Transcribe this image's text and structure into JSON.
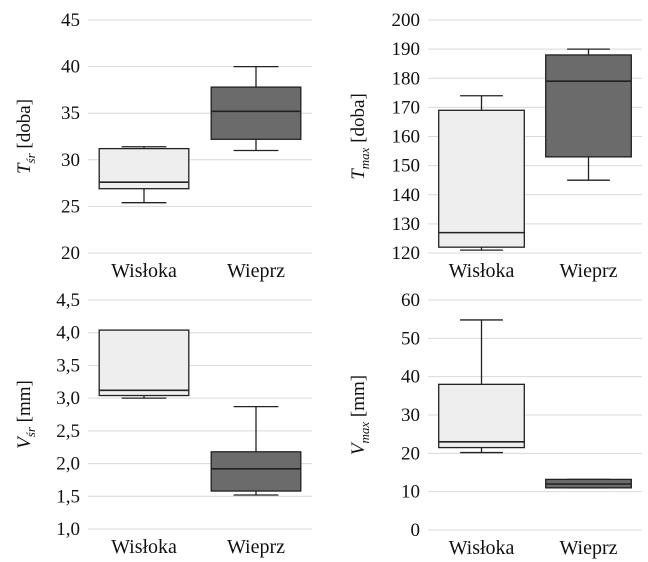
{
  "chart_data": [
    {
      "type": "box",
      "ylabel_main": "T",
      "ylabel_sub": "śr",
      "ylabel_rest": " [doba]",
      "ylim": [
        20,
        45
      ],
      "yticks": [
        "20",
        "25",
        "30",
        "35",
        "40",
        "45"
      ],
      "yticks_values": [
        20,
        25,
        30,
        35,
        40,
        45
      ],
      "categories": [
        "Wisłoka",
        "Wieprz"
      ],
      "series": [
        {
          "category": "Wisłoka",
          "min": 25.4,
          "q1": 26.9,
          "median": 27.6,
          "q3": 31.2,
          "max": 31.4,
          "color": "#eeeeee"
        },
        {
          "category": "Wieprz",
          "min": 31.0,
          "q1": 32.2,
          "median": 35.2,
          "q3": 37.8,
          "max": 40.0,
          "color": "#6b6b6b"
        }
      ]
    },
    {
      "type": "box",
      "ylabel_main": "T",
      "ylabel_sub": "max",
      "ylabel_rest": " [doba]",
      "ylim": [
        120,
        200
      ],
      "yticks": [
        "120",
        "130",
        "140",
        "150",
        "160",
        "170",
        "180",
        "190",
        "200"
      ],
      "yticks_values": [
        120,
        130,
        140,
        150,
        160,
        170,
        180,
        190,
        200
      ],
      "categories": [
        "Wisłoka",
        "Wieprz"
      ],
      "series": [
        {
          "category": "Wisłoka",
          "min": 121,
          "q1": 122,
          "median": 127,
          "q3": 169,
          "max": 174,
          "color": "#eeeeee"
        },
        {
          "category": "Wieprz",
          "min": 145,
          "q1": 153,
          "median": 179,
          "q3": 188,
          "max": 190,
          "color": "#6b6b6b"
        }
      ]
    },
    {
      "type": "box",
      "ylabel_main": "V",
      "ylabel_sub": "śr",
      "ylabel_rest": " [mm]",
      "ylim": [
        1.0,
        4.5
      ],
      "yticks": [
        "1,0",
        "1,5",
        "2,0",
        "2,5",
        "3,0",
        "3,5",
        "4,0",
        "4,5"
      ],
      "yticks_values": [
        1.0,
        1.5,
        2.0,
        2.5,
        3.0,
        3.5,
        4.0,
        4.5
      ],
      "categories": [
        "Wisłoka",
        "Wieprz"
      ],
      "series": [
        {
          "category": "Wisłoka",
          "min": 3.0,
          "q1": 3.04,
          "median": 3.12,
          "q3": 4.04,
          "max": 4.04,
          "color": "#eeeeee"
        },
        {
          "category": "Wieprz",
          "min": 1.52,
          "q1": 1.58,
          "median": 1.92,
          "q3": 2.18,
          "max": 2.87,
          "color": "#6b6b6b"
        }
      ]
    },
    {
      "type": "box",
      "ylabel_main": "V",
      "ylabel_sub": "max",
      "ylabel_rest": " [mm]",
      "ylim": [
        0,
        60
      ],
      "yticks": [
        "0",
        "10",
        "20",
        "30",
        "40",
        "50",
        "60"
      ],
      "yticks_values": [
        0,
        10,
        20,
        30,
        40,
        50,
        60
      ],
      "categories": [
        "Wisłoka",
        "Wieprz"
      ],
      "series": [
        {
          "category": "Wisłoka",
          "min": 20.2,
          "q1": 21.5,
          "median": 23.0,
          "q3": 38.0,
          "max": 54.8,
          "color": "#eeeeee"
        },
        {
          "category": "Wieprz",
          "min": 11.0,
          "q1": 11.0,
          "median": 12.0,
          "q3": 13.2,
          "max": 13.2,
          "color": "#6b6b6b"
        }
      ]
    }
  ]
}
